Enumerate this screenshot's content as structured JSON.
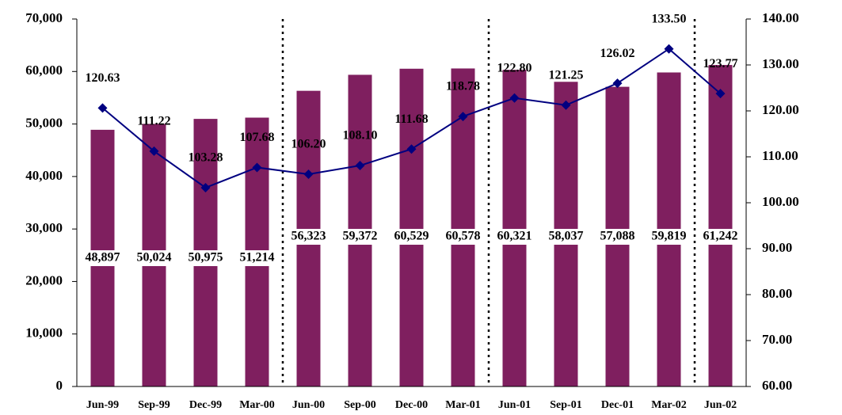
{
  "chart_data": {
    "type": "bar",
    "categories": [
      "Jun-99",
      "Sep-99",
      "Dec-99",
      "Mar-00",
      "Jun-00",
      "Sep-00",
      "Dec-00",
      "Mar-01",
      "Jun-01",
      "Sep-01",
      "Dec-01",
      "Mar-02",
      "Jun-02"
    ],
    "series": [
      {
        "type": "bar",
        "color": "#7f1f5f",
        "values": [
          48897,
          50024,
          50975,
          51214,
          56323,
          59372,
          60529,
          60578,
          60321,
          58037,
          57088,
          59819,
          61242
        ],
        "value_labels": [
          "48,897",
          "50,024",
          "50,975",
          "51,214",
          "56,323",
          "59,372",
          "60,529",
          "60,578",
          "60,321",
          "58,037",
          "57,088",
          "59,819",
          "61,242"
        ]
      },
      {
        "type": "line",
        "axis": "y2",
        "color": "#000080",
        "values": [
          120.63,
          111.22,
          103.28,
          107.68,
          106.2,
          108.1,
          111.68,
          118.78,
          122.8,
          121.25,
          126.02,
          133.5,
          123.77
        ],
        "value_labels": [
          "120.63",
          "111.22",
          "103.28",
          "107.68",
          "106.20",
          "108.10",
          "111.68",
          "118.78",
          "122.80",
          "121.25",
          "126.02",
          "133.50",
          "123.77"
        ]
      }
    ],
    "ylim": [
      0,
      70000
    ],
    "yticks": [
      0,
      {
        "value": 10000,
        "label": "10,000"
      },
      {
        "value": 20000,
        "label": "20,000"
      },
      {
        "value": 30000,
        "label": "30,000"
      },
      {
        "value": 40000,
        "label": "40,000"
      },
      {
        "value": 50000,
        "label": "50,000"
      },
      {
        "value": 60000,
        "label": "60,000"
      },
      {
        "value": 70000,
        "label": "70,000"
      }
    ],
    "y2lim": [
      60,
      140
    ],
    "y2ticks": [
      {
        "value": 60,
        "label": "60.00"
      },
      {
        "value": 70,
        "label": "70.00"
      },
      {
        "value": 80,
        "label": "80.00"
      },
      {
        "value": 90,
        "label": "90.00"
      },
      {
        "value": 100,
        "label": "100.00"
      },
      {
        "value": 110,
        "label": "110.00"
      },
      {
        "value": 120,
        "label": "120.00"
      },
      {
        "value": 130,
        "label": "130.00"
      },
      {
        "value": 140,
        "label": "140.00"
      }
    ],
    "grid": false
  }
}
